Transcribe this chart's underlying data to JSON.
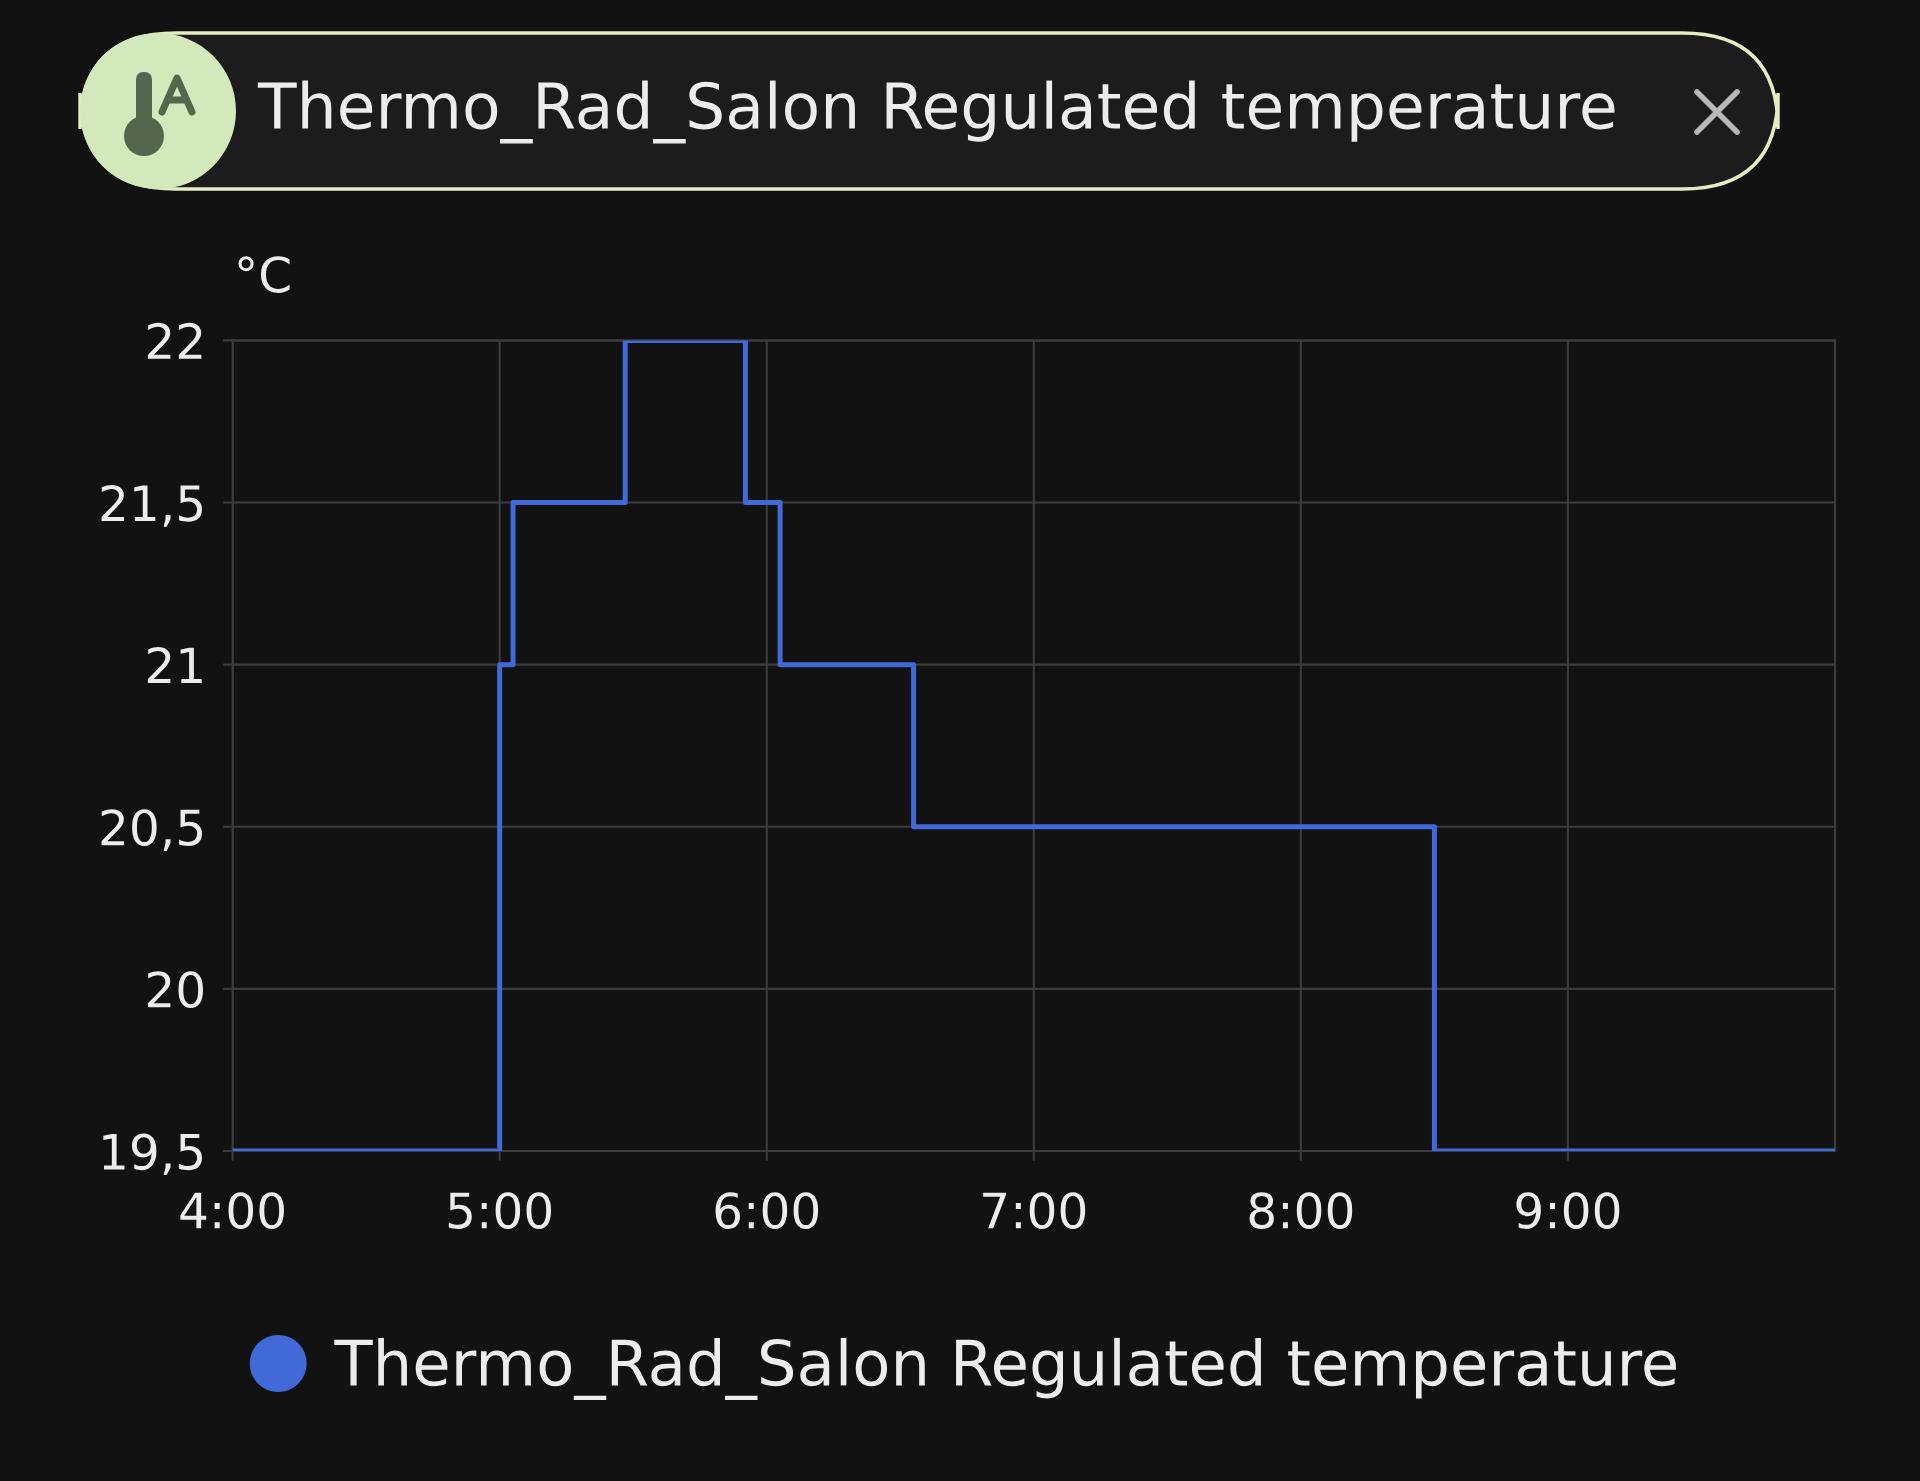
{
  "chart_data": {
    "type": "step",
    "title": "Thermo_Rad_Salon Regulated temperature",
    "ylabel": "°C",
    "x": [
      4,
      5,
      5.05,
      5.47,
      5.92,
      6.05,
      6.55,
      8.5,
      10
    ],
    "series": [
      {
        "name": "Thermo_Rad_Salon Regulated temperature",
        "color": "#4169d8",
        "values": [
          19.5,
          21,
          21.5,
          22,
          21.5,
          21,
          20.5,
          19.5,
          19.5
        ]
      }
    ],
    "xlim": [
      4,
      10
    ],
    "xticks": [
      {
        "value": 4,
        "label": "4:00"
      },
      {
        "value": 5,
        "label": "5:00"
      },
      {
        "value": 6,
        "label": "6:00"
      },
      {
        "value": 7,
        "label": "7:00"
      },
      {
        "value": 8,
        "label": "8:00"
      },
      {
        "value": 9,
        "label": "9:00"
      }
    ],
    "ylim": [
      19.5,
      22
    ],
    "yticks": [
      {
        "value": 19.5,
        "label": "19,5"
      },
      20,
      {
        "value": 20.5,
        "label": "20,5"
      },
      21,
      {
        "value": 21.5,
        "label": "21,5"
      },
      22
    ],
    "grid": true,
    "legend": "bottom",
    "line_style": "solid"
  }
}
